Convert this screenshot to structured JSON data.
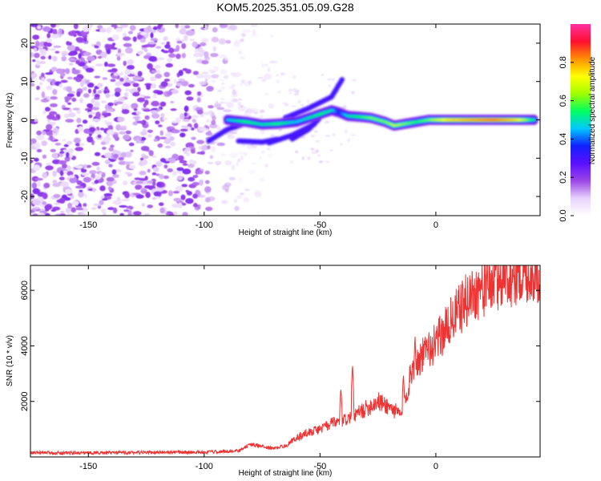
{
  "title": "KOM5.2025.351.05.09.G28",
  "chart_data": [
    {
      "type": "heatmap",
      "title": "KOM5.2025.351.05.09.G28",
      "xlabel": "Height of straight line (km)",
      "ylabel": "Frequency (Hz)",
      "xlim": [
        -175,
        45
      ],
      "ylim": [
        -25,
        25
      ],
      "xticks": [
        -150,
        -100,
        -50,
        0
      ],
      "yticks": [
        -20,
        -10,
        0,
        10,
        20
      ],
      "colorbar": {
        "label": "Normalized spectral amplitude",
        "range": [
          0,
          1
        ],
        "ticks": [
          "0.0",
          "0.2",
          "0.4",
          "0.6",
          "0.8"
        ],
        "colors": [
          "#ffffff",
          "#e7d2fb",
          "#9b45e6",
          "#5a10ff",
          "#1020ff",
          "#00c8ff",
          "#00ff60",
          "#a0ff00",
          "#ffff00",
          "#ff9000",
          "#ff1030",
          "#ff30a0"
        ]
      },
      "ridge": {
        "description_points_km_hz_amp": [
          [
            -90,
            0.0,
            0.45
          ],
          [
            -82,
            -0.5,
            0.55
          ],
          [
            -75,
            -1.2,
            0.5
          ],
          [
            -68,
            -1.0,
            0.55
          ],
          [
            -60,
            -0.5,
            0.45
          ],
          [
            -55,
            0.5,
            0.5
          ],
          [
            -50,
            1.5,
            0.55
          ],
          [
            -45,
            2.5,
            0.5
          ],
          [
            -42,
            2.0,
            0.35
          ],
          [
            -38,
            1.0,
            0.5
          ],
          [
            -33,
            0.8,
            0.55
          ],
          [
            -28,
            0.5,
            0.6
          ],
          [
            -22,
            -0.5,
            0.6
          ],
          [
            -18,
            -1.5,
            0.65
          ],
          [
            -13,
            -1.0,
            0.6
          ],
          [
            -8,
            -0.5,
            0.55
          ],
          [
            -3,
            0.0,
            0.6
          ],
          [
            5,
            0.0,
            0.75
          ],
          [
            15,
            0.0,
            0.8
          ],
          [
            25,
            0.0,
            0.85
          ],
          [
            35,
            0.0,
            0.75
          ],
          [
            43,
            0.0,
            0.5
          ]
        ],
        "branches_km_hz": [
          [
            [
              -62,
              -5.0
            ],
            [
              -55,
              -2.5
            ],
            [
              -50,
              0.5
            ]
          ],
          [
            [
              -98,
              -5.5
            ],
            [
              -90,
              -2.5
            ],
            [
              -80,
              -0.5
            ]
          ],
          [
            [
              -85,
              -5.5
            ],
            [
              -75,
              -5.8
            ],
            [
              -68,
              -5.0
            ]
          ],
          [
            [
              -72,
              -6.0
            ],
            [
              -62,
              -4.0
            ],
            [
              -52,
              -1.0
            ]
          ],
          [
            [
              -65,
              0.5
            ],
            [
              -55,
              3.0
            ],
            [
              -45,
              6.0
            ],
            [
              -40,
              11.0
            ]
          ]
        ]
      }
    },
    {
      "type": "line",
      "xlabel": "Height of straight line (km)",
      "ylabel": "SNR (10 * v/v)",
      "xlim": [
        -175,
        45
      ],
      "ylim": [
        0,
        6900
      ],
      "xticks": [
        -150,
        -100,
        -50,
        0
      ],
      "yticks": [
        2000,
        4000,
        6000
      ],
      "series": [
        {
          "name": "SNR",
          "color": "#ee3333",
          "x": [
            -175,
            -150,
            -125,
            -100,
            -85,
            -80,
            -75,
            -70,
            -65,
            -60,
            -55,
            -50,
            -45,
            -40,
            -35,
            -30,
            -25,
            -20,
            -15,
            -12,
            -10,
            -5,
            0,
            5,
            10,
            15,
            20,
            25,
            30,
            35,
            40,
            45
          ],
          "y": [
            150,
            150,
            160,
            170,
            220,
            450,
            380,
            300,
            400,
            700,
            900,
            1000,
            1200,
            1300,
            1500,
            1750,
            2000,
            1800,
            1500,
            2500,
            3300,
            3700,
            4100,
            4700,
            5300,
            5800,
            6100,
            6300,
            6500,
            6600,
            6650,
            6700
          ]
        }
      ],
      "spikes_km_snr": [
        [
          -36,
          3350
        ],
        [
          -41,
          2500
        ],
        [
          -14,
          3000
        ],
        [
          -9,
          4400
        ],
        [
          -3,
          4600
        ]
      ]
    }
  ]
}
